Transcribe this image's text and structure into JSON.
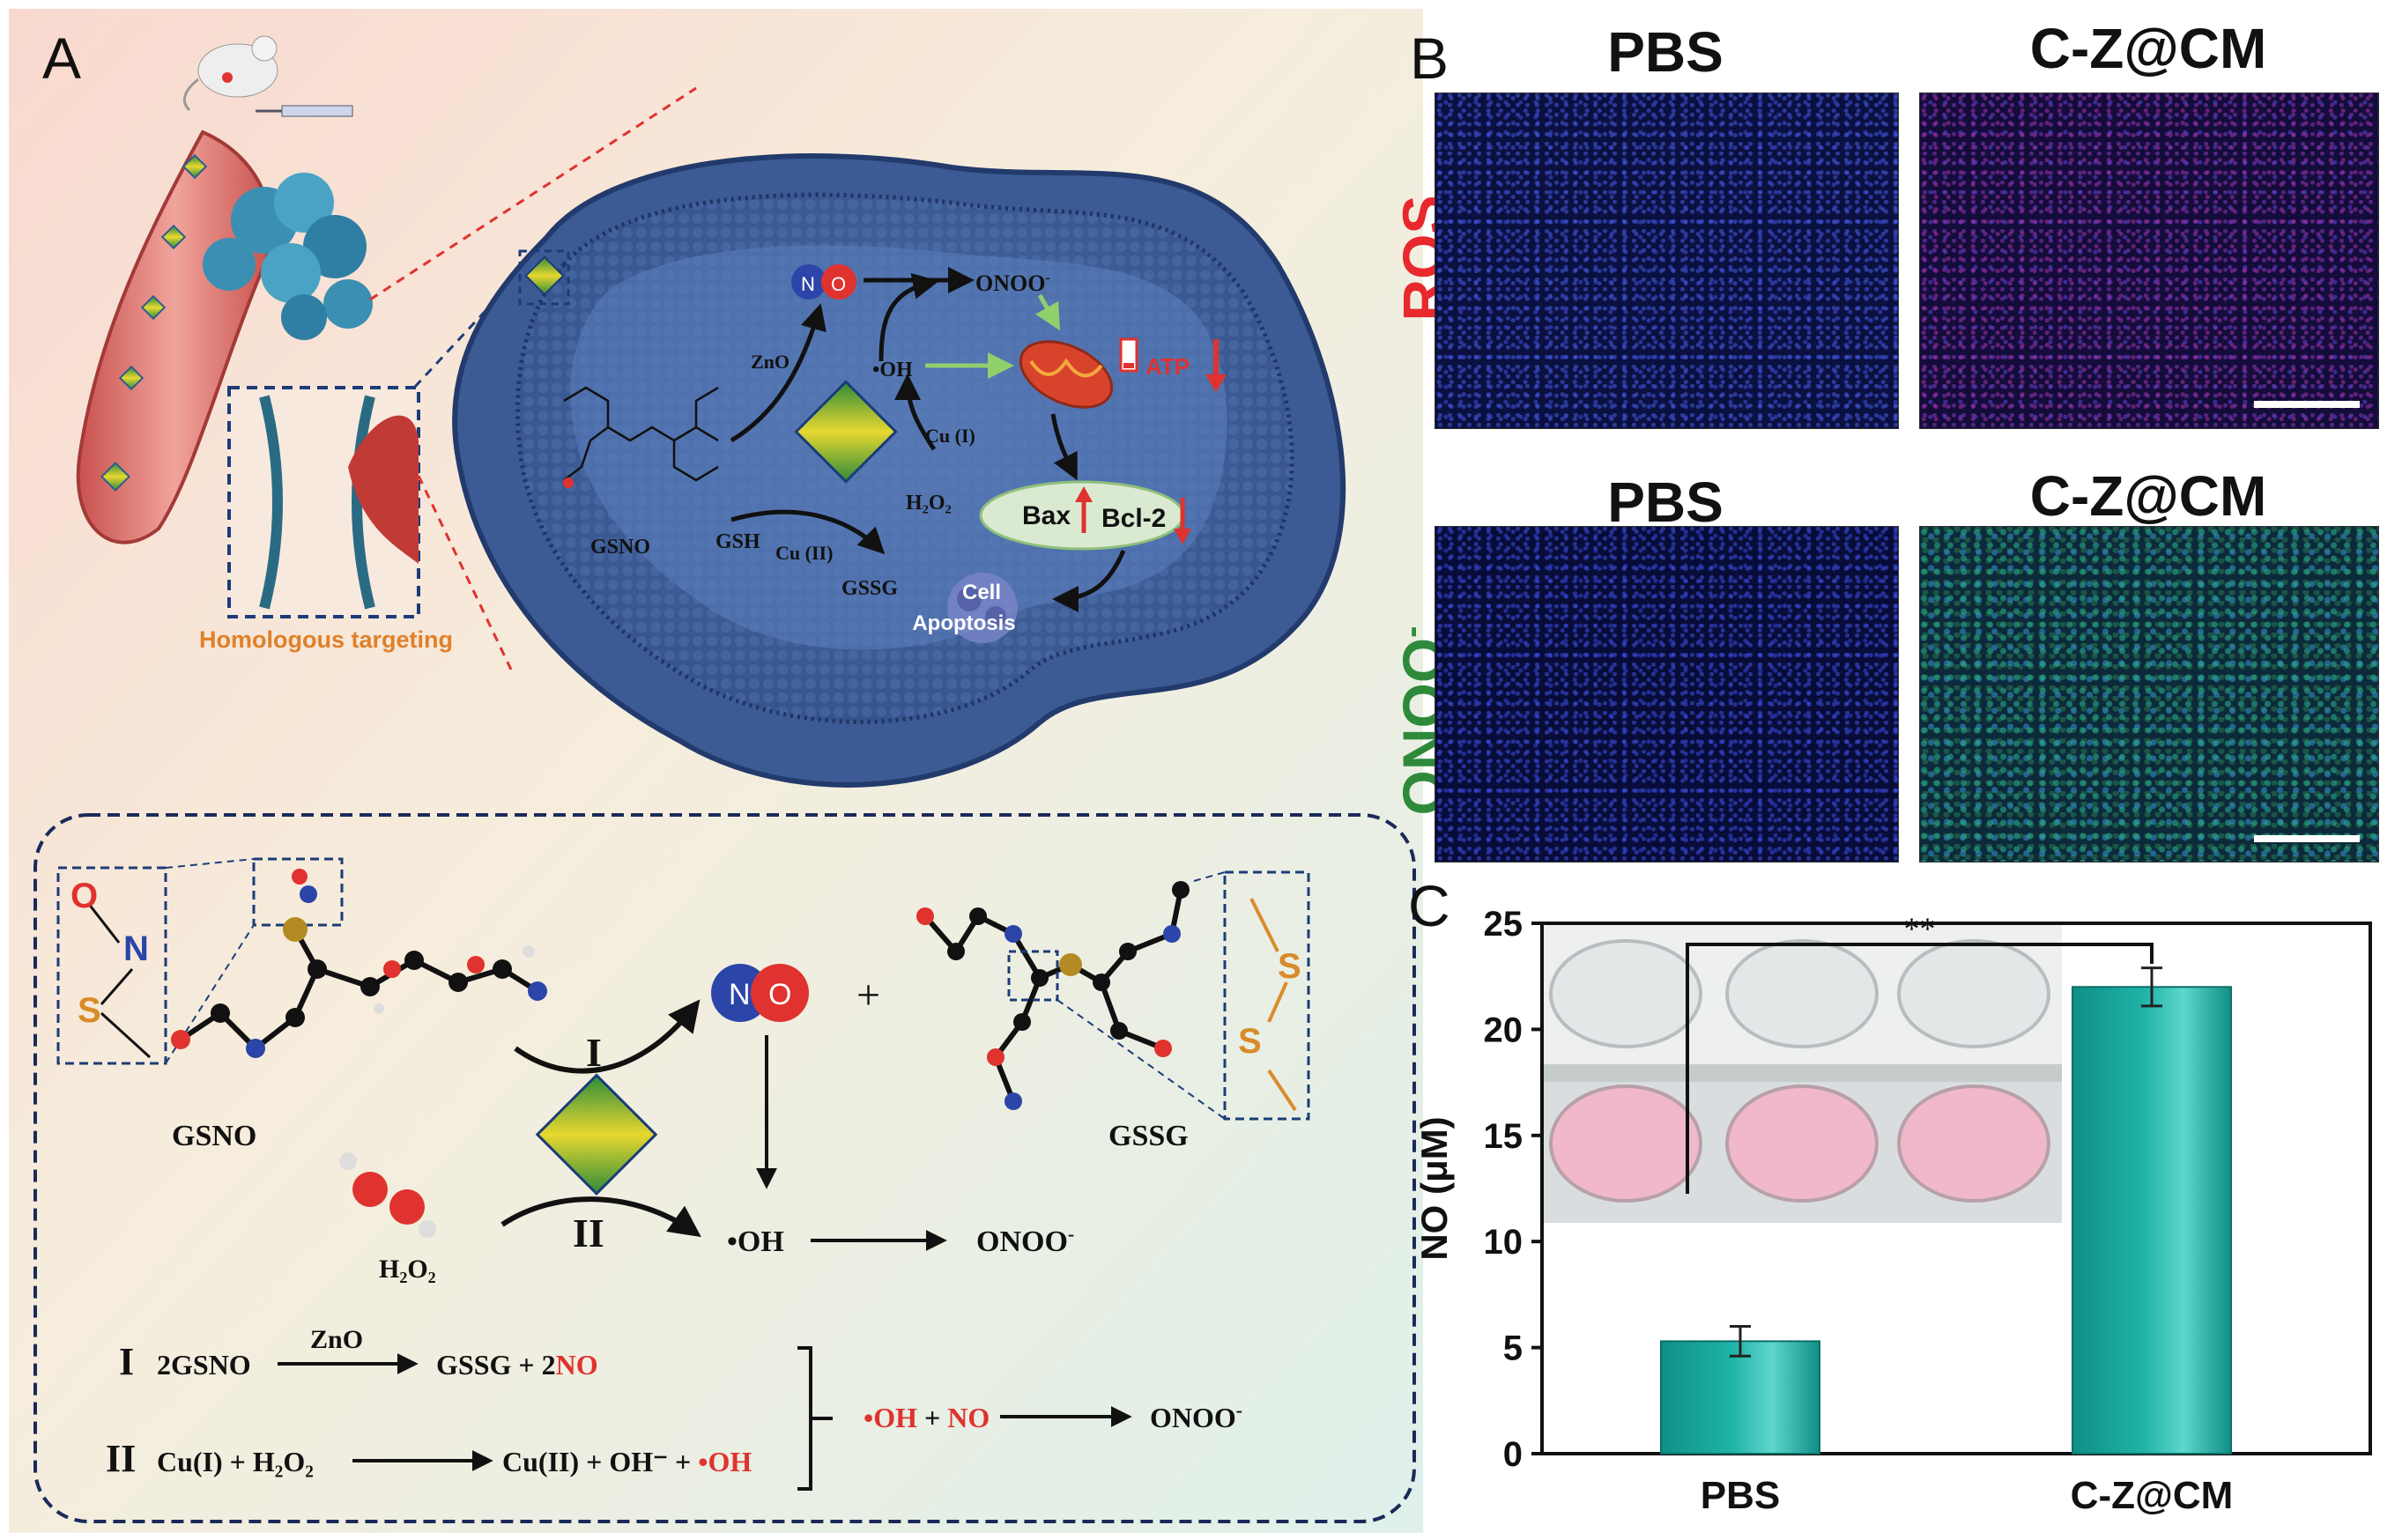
{
  "panel_a": {
    "letter": "A",
    "homologous_label": "Homologous targeting",
    "cell": {
      "zno": "ZnO",
      "ono": "ONOO",
      "ono_sup": "-",
      "oh": "•OH",
      "cu1": "Cu (I)",
      "cu2": "Cu (II)",
      "h2o2": "H₂O₂",
      "gsh": "GSH",
      "gssg": "GSSG",
      "gsno": "GSNO",
      "atp": "ATP",
      "bax": "Bax",
      "bcl2": "Bcl-2",
      "cell_apoptosis_1": "Cell",
      "cell_apoptosis_2": "Apoptosis",
      "n": "N",
      "o": "O"
    },
    "bottom": {
      "gsno": "GSNO",
      "gssg": "GSSG",
      "h2o2": "H₂O₂",
      "step1": "I",
      "step2": "II",
      "plus": "+",
      "oh": "•OH",
      "ono": "ONOO",
      "ono_sup": "-",
      "atom_o": "O",
      "atom_n": "N",
      "atom_s": "S",
      "atom_s2": "S",
      "atom_s3": "S",
      "no_n": "N",
      "no_o": "O",
      "eq1_num": "I",
      "eq1_left": "2GSNO",
      "eq1_cat": "ZnO",
      "eq1_right_a": "GSSG + 2",
      "eq1_right_b": "NO",
      "eq2_num": "II",
      "eq2_left": "Cu(I) + H₂O₂",
      "eq2_right_a": "Cu(II) + OH⁻ + ",
      "eq2_right_b": "•OH",
      "eq3_a": "•OH",
      "eq3_plus": " + ",
      "eq3_b": "NO",
      "eq3_right": "ONOO",
      "eq3_sup": "-"
    }
  },
  "panel_b": {
    "letter": "B",
    "col_pbs": "PBS",
    "col_czcm": "C-Z@CM",
    "col_pbs_2": "PBS",
    "col_czcm_2": "C-Z@CM",
    "row_ros": "ROS",
    "row_onoo": "ONOO",
    "row_onoo_sup": "-",
    "colors": {
      "ros": "#e8282d",
      "onoo": "#2e8a3a"
    }
  },
  "panel_c": {
    "letter": "C",
    "chart_data": {
      "type": "bar",
      "categories": [
        "PBS",
        "C-Z@CM"
      ],
      "values": [
        5.3,
        22.0
      ],
      "errors": [
        0.7,
        0.9
      ],
      "ylabel": "NO (μM)",
      "ylim": [
        0,
        25
      ],
      "yticks": [
        0,
        5,
        10,
        15,
        20,
        25
      ],
      "significance": "**",
      "bar_color": "#1fb3a8"
    }
  }
}
